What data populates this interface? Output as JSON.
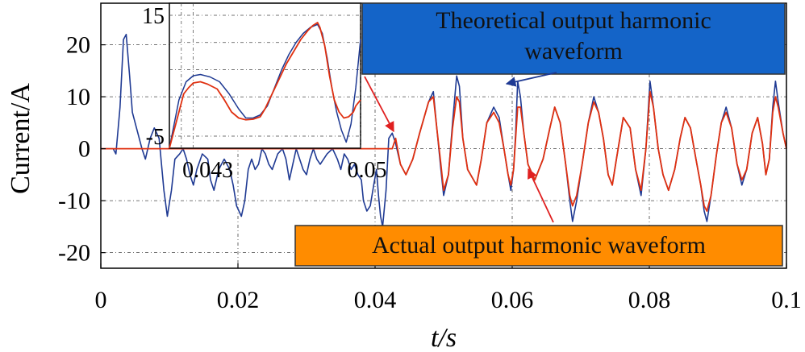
{
  "chart_data": {
    "type": "line",
    "xlabel": "t/s",
    "ylabel": "Current/A",
    "xlim": [
      0,
      0.1
    ],
    "ylim": [
      -23,
      28
    ],
    "x_ticks": [
      "0",
      "0.02",
      "0.04",
      "0.06",
      "0.08",
      "0.1"
    ],
    "y_ticks": [
      "-20",
      "-10",
      "0",
      "10",
      "20"
    ],
    "grid": true,
    "series": [
      {
        "name": "Theoretical output harmonic waveform",
        "color": "#1f3a93",
        "points": [
          [
            0,
            0
          ],
          [
            0.0018,
            0
          ],
          [
            0.0022,
            -1
          ],
          [
            0.0028,
            8
          ],
          [
            0.0033,
            21
          ],
          [
            0.0037,
            22
          ],
          [
            0.0042,
            14
          ],
          [
            0.0046,
            7
          ],
          [
            0.0052,
            4
          ],
          [
            0.006,
            0
          ],
          [
            0.0065,
            -2
          ],
          [
            0.0072,
            2
          ],
          [
            0.0078,
            4
          ],
          [
            0.0085,
            2
          ],
          [
            0.0092,
            -8
          ],
          [
            0.0097,
            -13
          ],
          [
            0.0103,
            -8
          ],
          [
            0.0108,
            -2
          ],
          [
            0.0115,
            -1
          ],
          [
            0.012,
            0
          ],
          [
            0.0125,
            -2
          ],
          [
            0.013,
            -5
          ],
          [
            0.0135,
            -7
          ],
          [
            0.014,
            -4
          ],
          [
            0.0148,
            -1
          ],
          [
            0.0156,
            -2
          ],
          [
            0.016,
            -6
          ],
          [
            0.0165,
            -8
          ],
          [
            0.0172,
            -4
          ],
          [
            0.018,
            -2
          ],
          [
            0.0188,
            -4
          ],
          [
            0.0193,
            -7
          ],
          [
            0.0198,
            -11
          ],
          [
            0.0205,
            -13
          ],
          [
            0.021,
            -10
          ],
          [
            0.0215,
            -4
          ],
          [
            0.022,
            -2
          ],
          [
            0.0225,
            -4
          ],
          [
            0.023,
            -3
          ],
          [
            0.0235,
            0
          ],
          [
            0.024,
            -1
          ],
          [
            0.0245,
            -3
          ],
          [
            0.025,
            -4
          ],
          [
            0.0258,
            -1
          ],
          [
            0.0265,
            0
          ],
          [
            0.027,
            -2
          ],
          [
            0.0275,
            -6
          ],
          [
            0.028,
            -3
          ],
          [
            0.0285,
            0
          ],
          [
            0.029,
            -2
          ],
          [
            0.0295,
            -4
          ],
          [
            0.03,
            -5
          ],
          [
            0.0305,
            -2
          ],
          [
            0.031,
            0
          ],
          [
            0.0315,
            -2
          ],
          [
            0.032,
            -3
          ],
          [
            0.033,
            -1
          ],
          [
            0.0338,
            0
          ],
          [
            0.0345,
            -2
          ],
          [
            0.035,
            -4
          ],
          [
            0.0355,
            -1
          ],
          [
            0.036,
            -2
          ],
          [
            0.0365,
            -4
          ],
          [
            0.037,
            -3
          ],
          [
            0.0375,
            -5
          ],
          [
            0.038,
            -6
          ],
          [
            0.0383,
            -10
          ],
          [
            0.0388,
            -12
          ],
          [
            0.0393,
            -11
          ],
          [
            0.0398,
            -7
          ],
          [
            0.0402,
            -4
          ],
          [
            0.0405,
            -9
          ],
          [
            0.0408,
            -13
          ],
          [
            0.0411,
            -15
          ],
          [
            0.0416,
            -8
          ],
          [
            0.042,
            2
          ],
          [
            0.0425,
            3
          ],
          [
            0.043,
            1
          ],
          [
            0.0437,
            -3
          ],
          [
            0.0445,
            -5
          ],
          [
            0.0455,
            -2
          ],
          [
            0.0465,
            3
          ],
          [
            0.0478,
            9
          ],
          [
            0.0485,
            11
          ],
          [
            0.049,
            4
          ],
          [
            0.0496,
            -4
          ],
          [
            0.05,
            -9
          ],
          [
            0.0507,
            -5
          ],
          [
            0.0513,
            5
          ],
          [
            0.0519,
            14
          ],
          [
            0.0523,
            12
          ],
          [
            0.0528,
            2
          ],
          [
            0.0535,
            -4
          ],
          [
            0.0548,
            -7
          ],
          [
            0.0555,
            -2
          ],
          [
            0.0563,
            5
          ],
          [
            0.0573,
            8
          ],
          [
            0.0581,
            6
          ],
          [
            0.0588,
            0
          ],
          [
            0.0594,
            -5
          ],
          [
            0.0598,
            -8
          ],
          [
            0.0602,
            -4
          ],
          [
            0.0605,
            3
          ],
          [
            0.0608,
            13
          ],
          [
            0.0612,
            10
          ],
          [
            0.0617,
            3
          ],
          [
            0.0623,
            -3
          ],
          [
            0.0633,
            -6
          ],
          [
            0.0645,
            -2
          ],
          [
            0.0655,
            4
          ],
          [
            0.0662,
            8
          ],
          [
            0.067,
            5
          ],
          [
            0.0678,
            -3
          ],
          [
            0.0684,
            -10
          ],
          [
            0.0688,
            -14
          ],
          [
            0.0694,
            -10
          ],
          [
            0.0702,
            -3
          ],
          [
            0.0711,
            5
          ],
          [
            0.0719,
            10
          ],
          [
            0.0726,
            7
          ],
          [
            0.0733,
            2
          ],
          [
            0.074,
            -5
          ],
          [
            0.0746,
            -7
          ],
          [
            0.0752,
            -2
          ],
          [
            0.0762,
            6
          ],
          [
            0.0772,
            4
          ],
          [
            0.078,
            -4
          ],
          [
            0.0788,
            -9
          ],
          [
            0.0795,
            0
          ],
          [
            0.0801,
            13
          ],
          [
            0.0806,
            8
          ],
          [
            0.0813,
            0
          ],
          [
            0.082,
            -5
          ],
          [
            0.0828,
            -8
          ],
          [
            0.0837,
            -4
          ],
          [
            0.0845,
            2
          ],
          [
            0.0852,
            6
          ],
          [
            0.086,
            4
          ],
          [
            0.0868,
            -2
          ],
          [
            0.0875,
            -7
          ],
          [
            0.088,
            -12
          ],
          [
            0.0884,
            -14
          ],
          [
            0.089,
            -9
          ],
          [
            0.0898,
            -1
          ],
          [
            0.0905,
            5
          ],
          [
            0.0912,
            8
          ],
          [
            0.092,
            4
          ],
          [
            0.0928,
            -3
          ],
          [
            0.0935,
            -7
          ],
          [
            0.0942,
            -4
          ],
          [
            0.095,
            3
          ],
          [
            0.0958,
            6
          ],
          [
            0.0965,
            1
          ],
          [
            0.097,
            -5
          ],
          [
            0.0975,
            -2
          ],
          [
            0.098,
            8
          ],
          [
            0.0984,
            13
          ],
          [
            0.0988,
            9
          ],
          [
            0.0995,
            3
          ],
          [
            0.1,
            0
          ]
        ]
      },
      {
        "name": "Actual output harmonic waveform",
        "color": "#e03010",
        "points": [
          [
            0,
            0
          ],
          [
            0.0425,
            0
          ],
          [
            0.043,
            2
          ],
          [
            0.0437,
            -3
          ],
          [
            0.0445,
            -5
          ],
          [
            0.0455,
            -2
          ],
          [
            0.0465,
            3
          ],
          [
            0.0478,
            9
          ],
          [
            0.0485,
            10
          ],
          [
            0.049,
            4
          ],
          [
            0.0496,
            -3
          ],
          [
            0.05,
            -8
          ],
          [
            0.0507,
            -5
          ],
          [
            0.0513,
            4
          ],
          [
            0.0519,
            10
          ],
          [
            0.0523,
            9
          ],
          [
            0.0528,
            2
          ],
          [
            0.0535,
            -4
          ],
          [
            0.0548,
            -7
          ],
          [
            0.0555,
            -2
          ],
          [
            0.0563,
            5
          ],
          [
            0.0573,
            7
          ],
          [
            0.0581,
            5
          ],
          [
            0.0588,
            0
          ],
          [
            0.0594,
            -5
          ],
          [
            0.0598,
            -7
          ],
          [
            0.0602,
            -4
          ],
          [
            0.0605,
            2
          ],
          [
            0.0608,
            8
          ],
          [
            0.0612,
            8
          ],
          [
            0.0617,
            3
          ],
          [
            0.0623,
            -3
          ],
          [
            0.0633,
            -6
          ],
          [
            0.0645,
            -2
          ],
          [
            0.0655,
            4
          ],
          [
            0.0662,
            8
          ],
          [
            0.067,
            5
          ],
          [
            0.0678,
            -3
          ],
          [
            0.0684,
            -9
          ],
          [
            0.0688,
            -11
          ],
          [
            0.0694,
            -9
          ],
          [
            0.0702,
            -3
          ],
          [
            0.0711,
            5
          ],
          [
            0.0719,
            9
          ],
          [
            0.0726,
            7
          ],
          [
            0.0733,
            2
          ],
          [
            0.074,
            -5
          ],
          [
            0.0746,
            -7
          ],
          [
            0.0752,
            -2
          ],
          [
            0.0762,
            6
          ],
          [
            0.0772,
            4
          ],
          [
            0.078,
            -4
          ],
          [
            0.0788,
            -8
          ],
          [
            0.0795,
            0
          ],
          [
            0.0801,
            11
          ],
          [
            0.0806,
            8
          ],
          [
            0.0813,
            0
          ],
          [
            0.082,
            -5
          ],
          [
            0.0828,
            -8
          ],
          [
            0.0837,
            -4
          ],
          [
            0.0845,
            2
          ],
          [
            0.0852,
            6
          ],
          [
            0.086,
            4
          ],
          [
            0.0868,
            -2
          ],
          [
            0.0875,
            -7
          ],
          [
            0.088,
            -11
          ],
          [
            0.0884,
            -12
          ],
          [
            0.089,
            -9
          ],
          [
            0.0898,
            -1
          ],
          [
            0.0905,
            5
          ],
          [
            0.0912,
            7
          ],
          [
            0.092,
            4
          ],
          [
            0.0928,
            -3
          ],
          [
            0.0935,
            -6
          ],
          [
            0.0942,
            -4
          ],
          [
            0.095,
            3
          ],
          [
            0.0958,
            6
          ],
          [
            0.0965,
            1
          ],
          [
            0.097,
            -5
          ],
          [
            0.0975,
            -2
          ],
          [
            0.098,
            7
          ],
          [
            0.0984,
            10
          ],
          [
            0.0988,
            8
          ],
          [
            0.0995,
            3
          ],
          [
            0.1,
            0
          ]
        ]
      }
    ],
    "inset": {
      "xlim": [
        0.042,
        0.05
      ],
      "ylim": [
        -7,
        17
      ],
      "x_ticks": [
        0.043,
        0.05
      ],
      "x_tick_labels": [
        "0.043",
        "0.05"
      ],
      "y_ticks": [
        15,
        -5
      ],
      "y_tick_labels": [
        "15",
        "-5"
      ],
      "theoretical": [
        [
          0.042,
          -7
        ],
        [
          0.0424,
          1
        ],
        [
          0.0427,
          4
        ],
        [
          0.043,
          5
        ],
        [
          0.0433,
          5.2
        ],
        [
          0.0437,
          4.8
        ],
        [
          0.0441,
          4
        ],
        [
          0.0445,
          2
        ],
        [
          0.0449,
          -0.5
        ],
        [
          0.0452,
          -2
        ],
        [
          0.0455,
          -2
        ],
        [
          0.0458,
          -1.5
        ],
        [
          0.0461,
          0
        ],
        [
          0.0464,
          3
        ],
        [
          0.0467,
          6
        ],
        [
          0.047,
          8.5
        ],
        [
          0.0473,
          10.5
        ],
        [
          0.0476,
          12
        ],
        [
          0.0479,
          13
        ],
        [
          0.0482,
          13.5
        ],
        [
          0.0484,
          12
        ],
        [
          0.0486,
          8
        ],
        [
          0.0488,
          3
        ],
        [
          0.049,
          -1
        ],
        [
          0.0492,
          -4
        ],
        [
          0.0494,
          -6
        ],
        [
          0.0496,
          -3
        ],
        [
          0.0498,
          3
        ],
        [
          0.05,
          11
        ]
      ],
      "actual": [
        [
          0.042,
          -7
        ],
        [
          0.0424,
          -1
        ],
        [
          0.0426,
          2
        ],
        [
          0.0428,
          3
        ],
        [
          0.043,
          3.8
        ],
        [
          0.0433,
          4
        ],
        [
          0.0436,
          3.6
        ],
        [
          0.044,
          2.8
        ],
        [
          0.0443,
          1
        ],
        [
          0.0446,
          -1
        ],
        [
          0.0449,
          -2
        ],
        [
          0.0452,
          -2.3
        ],
        [
          0.0455,
          -2.2
        ],
        [
          0.0458,
          -1.8
        ],
        [
          0.046,
          -0.5
        ],
        [
          0.0463,
          2
        ],
        [
          0.0466,
          4.5
        ],
        [
          0.0469,
          7
        ],
        [
          0.0472,
          9
        ],
        [
          0.0475,
          11
        ],
        [
          0.0478,
          12.5
        ],
        [
          0.048,
          13.3
        ],
        [
          0.0482,
          13.8
        ],
        [
          0.0483,
          13
        ],
        [
          0.0485,
          10
        ],
        [
          0.0487,
          5
        ],
        [
          0.0489,
          1
        ],
        [
          0.0491,
          -1
        ],
        [
          0.0493,
          -2
        ],
        [
          0.0495,
          -1.8
        ],
        [
          0.0497,
          -1
        ],
        [
          0.0498,
          0
        ],
        [
          0.05,
          1
        ]
      ]
    },
    "annotations": {
      "theoretical_label": [
        "Theoretical output harmonic",
        "waveform"
      ],
      "actual_label": "Actual output harmonic waveform",
      "theoretical_box_color": "#1464c8",
      "actual_box_color": "#ff8c00"
    }
  }
}
